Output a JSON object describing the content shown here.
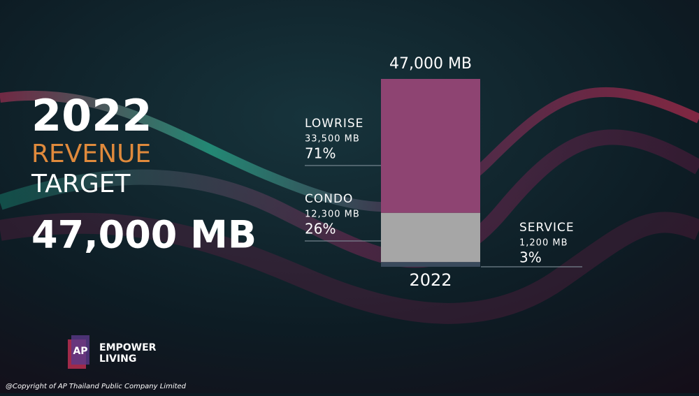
{
  "slide": {
    "year": "2022",
    "line1": "REVENUE",
    "line2": "TARGET",
    "amount": "47,000 MB",
    "logo": {
      "mark": "AP",
      "line1": "EMPOWER",
      "line2": "LIVING"
    },
    "copyright": "@Copyright of AP Thailand Public Company Limited"
  },
  "chart_data": {
    "type": "stacked-bar",
    "categories": [
      "2022"
    ],
    "total": 47000,
    "total_label": "47,000 MB",
    "ylim": [
      0,
      47000
    ],
    "series": [
      {
        "name": "SERVICE",
        "color": "#3a4a5c",
        "values": [
          1200
        ],
        "value_labels": [
          "1,200 MB"
        ],
        "share": 3,
        "share_label": "3%"
      },
      {
        "name": "CONDO",
        "color": "#a6a6a6",
        "values": [
          12300
        ],
        "value_labels": [
          "12,300 MB"
        ],
        "share": 26,
        "share_label": "26%"
      },
      {
        "name": "LOWRISE",
        "color": "#8e4472",
        "values": [
          33500
        ],
        "value_labels": [
          "33,500 MB"
        ],
        "share": 71,
        "share_label": "71%"
      }
    ]
  }
}
